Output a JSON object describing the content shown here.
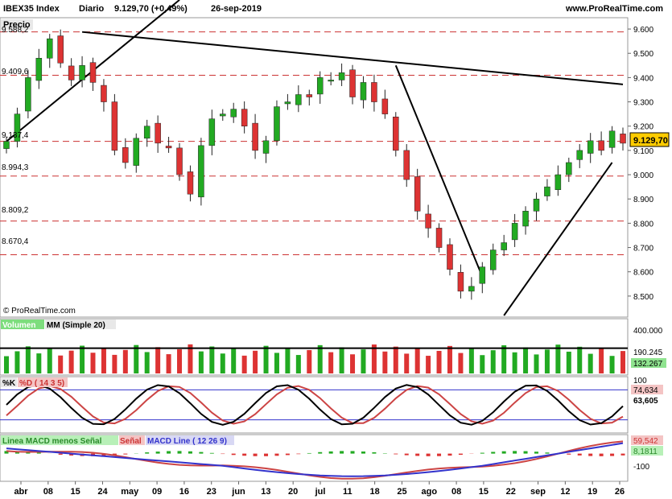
{
  "header": {
    "symbol": "IBEX35 Index",
    "period": "Diario",
    "last": "9.129,70 (+0,49%)",
    "date": "26-sep-2019",
    "site": "www.ProRealTime.com"
  },
  "price_panel": {
    "title": "Precio",
    "watermark": "© ProRealTime.com",
    "current_label": "9.129,70",
    "levels": [
      "9.588,2",
      "9.409,6",
      "9.137,4",
      "8.994,3",
      "8.809,2",
      "8.670,4"
    ],
    "y_ticks": [
      "9.600",
      "9.500",
      "9.400",
      "9.300",
      "9.200",
      "9.100",
      "9.000",
      "8.900",
      "8.800",
      "8.700",
      "8.600",
      "8.500"
    ]
  },
  "volume_panel": {
    "legend_volume": "Volumen",
    "legend_mm": "MM (Simple 20)",
    "ticks": [
      "400.000",
      "190.245",
      "132.267"
    ]
  },
  "stoch_panel": {
    "legend_k": "%K",
    "legend_d": "%D ( 14 3 5)",
    "ticks": [
      "100",
      "74,634",
      "63,605"
    ]
  },
  "macd_panel": {
    "legend_hist": "Linea MACD menos Señal",
    "legend_signal": "Señal",
    "legend_macd": "MACD Line ( 12 26 9)",
    "ticks": [
      "59,542",
      "8,1811",
      "-100"
    ]
  },
  "x_axis": [
    "abr",
    "08",
    "15",
    "24",
    "may",
    "09",
    "16",
    "23",
    "jun",
    "13",
    "20",
    "jul",
    "11",
    "18",
    "25",
    "ago",
    "08",
    "15",
    "22",
    "sep",
    "12",
    "19",
    "26"
  ],
  "colors": {
    "up": "#22aa22",
    "down": "#dd3333",
    "level": "#cc3333",
    "macd": "#3333cc",
    "signal": "#cc4444"
  },
  "chart_data": [
    {
      "type": "candlestick",
      "title": "IBEX35 Index",
      "series": [
        {
          "name": "IBEX35 Index",
          "close": [
            9137.4,
            9250,
            9400,
            9480,
            9560,
            9460,
            9390,
            9450,
            9380,
            9300,
            9100,
            9050,
            9150,
            9200,
            9130,
            9110,
            9000,
            8920,
            9120,
            9230,
            9250,
            9270,
            9200,
            9100,
            9140,
            9280,
            9300,
            9330,
            9320,
            9400,
            9390,
            9420,
            9320,
            9380,
            9300,
            9250,
            9100,
            8980,
            8850,
            8780,
            8700,
            8610,
            8520,
            8540,
            8620,
            8690,
            8720,
            8800,
            8850,
            8900,
            8950,
            9000,
            9050,
            9100,
            9140,
            9100,
            9180,
            9129.7
          ]
        }
      ],
      "ylim": [
        8420,
        9640
      ]
    },
    {
      "type": "bar",
      "title": "Volumen",
      "series": [
        {
          "name": "MM (Simple 20)",
          "values": [
            190245
          ]
        }
      ],
      "ylim": [
        0,
        400000
      ]
    },
    {
      "type": "line",
      "title": "%K %D ( 14 3 5)",
      "series": [
        {
          "name": "%K",
          "values": [
            63.605
          ]
        },
        {
          "name": "%D",
          "values": [
            74.634
          ]
        }
      ],
      "ylim": [
        0,
        100
      ]
    },
    {
      "type": "line",
      "title": "MACD Line ( 12 26 9)",
      "series": [
        {
          "name": "MACD Line",
          "values": [
            59.542
          ]
        },
        {
          "name": "Linea MACD menos Señal",
          "values": [
            8.1811
          ]
        }
      ],
      "ylim": [
        -150,
        100
      ]
    }
  ]
}
